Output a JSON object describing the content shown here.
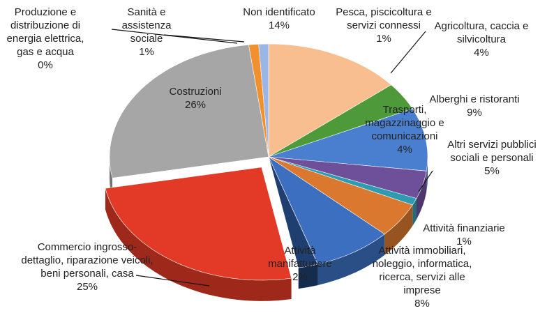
{
  "chart_data": {
    "type": "pie",
    "categories": [
      "Non identificato",
      "Agricoltura, caccia e silvicoltura",
      "Alberghi e ristoranti",
      "Trasporti, magazzinaggio e comunicazioni",
      "Attività finanziarie",
      "Altri servizi pubblici sociali e personali",
      "Attività immobiliari, noleggio, informatica, ricerca, servizi alle imprese",
      "Attività manifatturiere",
      "Commercio ingrosso-dettaglio, riparazione veicoli, beni personali, casa",
      "Costruzioni",
      "Produzione e distribuzione di energia elettrica, gas e acqua",
      "Sanità e assistenza sociale",
      "Pesca, piscicoltura e servizi connessi"
    ],
    "values": [
      14,
      4,
      9,
      4,
      1,
      5,
      8,
      2,
      25,
      26,
      0,
      1,
      1
    ],
    "value_labels": [
      "14%",
      "4%",
      "9%",
      "4%",
      "1%",
      "5%",
      "8%",
      "2%",
      "25%",
      "26%",
      "0%",
      "1%",
      "1%"
    ],
    "colors": [
      "#f9be8f",
      "#4e9a3a",
      "#4a7fcf",
      "#6e4f9a",
      "#2f9bb0",
      "#d9782e",
      "#3c6fc0",
      "#1f3f70",
      "#e23a26",
      "#a6a6a6",
      "#7b5aa6",
      "#f0902f",
      "#9ab6e6"
    ]
  }
}
